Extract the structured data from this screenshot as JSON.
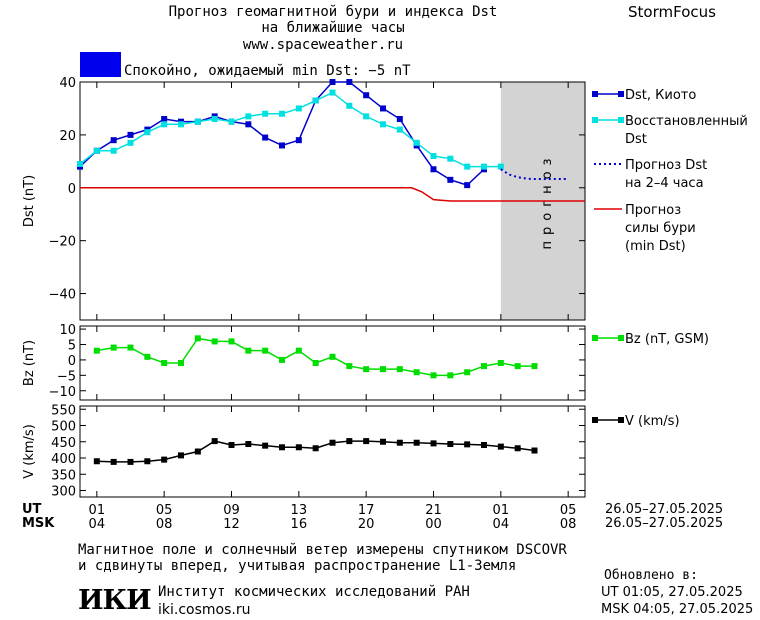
{
  "header": {
    "title_line1": "Прогноз геомагнитной бури и индекса Dst",
    "title_line2": "на ближайшие часы",
    "site": "www.spaceweather.ru",
    "brand": "StormFocus",
    "status_text": "Спокойно, ожидаемый min Dst: −5 nT",
    "status_color": "#0000ee"
  },
  "footer": {
    "note_line1": "Магнитное поле и солнечный ветер измерены спутником DSCOVR",
    "note_line2": "и сдвинуты вперед, учитывая распространение L1-Земля",
    "institute": "Институт космических исследований РАН",
    "institute_site": "iki.cosmos.ru",
    "logo_text": "ИКИ",
    "updated_label": "Обновлено в:",
    "updated_ut": "UT  01:05, 27.05.2025",
    "updated_msk": "MSK 04:05, 27.05.2025"
  },
  "time_axis": {
    "ut_label": "UT",
    "msk_label": "MSK",
    "ut_ticks": [
      "01",
      "05",
      "09",
      "13",
      "17",
      "21",
      "01",
      "05"
    ],
    "msk_ticks": [
      "04",
      "08",
      "12",
      "16",
      "20",
      "00",
      "04",
      "08"
    ],
    "ut_dates": "26.05–27.05.2025",
    "msk_dates": "26.05–27.05.2025",
    "tick_hours": [
      0,
      4,
      8,
      12,
      16,
      20,
      24,
      28
    ],
    "xlim_hours": [
      -1,
      29
    ]
  },
  "chart_data": [
    {
      "type": "line",
      "ylabel": "Dst (nT)",
      "ylim": [
        -50,
        40
      ],
      "yticks": [
        -40,
        -20,
        0,
        20,
        40
      ],
      "forecast_zone": {
        "label": "прогноз",
        "from_hour": 24,
        "to_hour": 29,
        "color": "#d3d3d3"
      },
      "legend": [
        {
          "label": "Dst, Киото",
          "color": "#0000cc"
        },
        {
          "label": "Восстановленный Dst",
          "label_line1": "Восстановленный",
          "label_line2": "Dst",
          "color": "#00e0e0"
        },
        {
          "label": "Прогноз Dst на 2–4 часа",
          "label_line1": "Прогноз Dst",
          "label_line2": "на 2–4 часа",
          "color": "#0000cc"
        },
        {
          "label": "Прогноз силы бури (min Dst)",
          "label_line1": "Прогноз",
          "label_line2": "силы бури",
          "label_line3": "(min Dst)",
          "color": "#dd0000"
        }
      ],
      "series": [
        {
          "name": "Dst, Киото",
          "color": "#0000cc",
          "x": [
            -1,
            0,
            1,
            2,
            3,
            4,
            5,
            6,
            7,
            8,
            9,
            10,
            11,
            12,
            13,
            14,
            15,
            16,
            17,
            18,
            19,
            20,
            21,
            22,
            23,
            24
          ],
          "y": [
            8,
            14,
            18,
            20,
            22,
            26,
            25,
            25,
            27,
            25,
            24,
            19,
            16,
            18,
            33,
            40,
            40,
            35,
            30,
            26,
            16,
            7,
            3,
            1,
            7,
            null
          ]
        },
        {
          "name": "Восстановленный Dst",
          "color": "#00e0e0",
          "x": [
            -1,
            0,
            1,
            2,
            3,
            4,
            5,
            6,
            7,
            8,
            9,
            10,
            11,
            12,
            13,
            14,
            15,
            16,
            17,
            18,
            19,
            20,
            21,
            22,
            23,
            24,
            25
          ],
          "y": [
            9,
            14,
            14,
            17,
            21,
            24,
            24,
            25,
            26,
            25,
            27,
            28,
            28,
            30,
            33,
            36,
            31,
            27,
            24,
            22,
            17,
            12,
            11,
            8,
            8,
            8,
            null
          ]
        },
        {
          "name": "Прогноз Dst на 2–4 часа",
          "color": "#0000cc",
          "dashed": true,
          "x": [
            24,
            24.5,
            25,
            25.5,
            26,
            26.5,
            27,
            27.5,
            28
          ],
          "y": [
            7,
            5,
            4,
            3.5,
            3.3,
            3.3,
            3.3,
            3.3,
            3.3
          ]
        },
        {
          "name": "Прогноз силы бури (min Dst)",
          "color": "#dd0000",
          "x": [
            -1,
            18.7,
            19.3,
            20,
            21,
            29
          ],
          "y": [
            0,
            0,
            -1.5,
            -4.5,
            -5,
            -5
          ]
        }
      ]
    },
    {
      "type": "line",
      "ylabel": "Bz (nT)",
      "ylim": [
        -13,
        11
      ],
      "yticks": [
        -10,
        -5,
        0,
        5,
        10
      ],
      "legend": [
        {
          "label": "Bz (nT, GSM)",
          "color": "#00dd00"
        }
      ],
      "series": [
        {
          "name": "Bz (nT, GSM)",
          "color": "#00dd00",
          "x": [
            0,
            1,
            2,
            3,
            4,
            5,
            6,
            7,
            8,
            9,
            10,
            11,
            12,
            13,
            14,
            15,
            16,
            17,
            18,
            19,
            20,
            21,
            22,
            23,
            24,
            25,
            26
          ],
          "y": [
            3,
            4,
            4,
            1,
            -1,
            -1,
            7,
            6,
            6,
            3,
            3,
            0,
            3,
            -1,
            1,
            -2,
            -3,
            -3,
            -3,
            -4,
            -5,
            -5,
            -4,
            -2,
            -1,
            -2,
            -2
          ]
        }
      ]
    },
    {
      "type": "line",
      "ylabel": "V (km/s)",
      "ylim": [
        280,
        560
      ],
      "yticks": [
        300,
        350,
        400,
        450,
        500,
        550
      ],
      "legend": [
        {
          "label": "V (km/s)",
          "color": "#000000"
        }
      ],
      "series": [
        {
          "name": "V (km/s)",
          "color": "#000000",
          "x": [
            0,
            1,
            2,
            3,
            4,
            5,
            6,
            7,
            8,
            9,
            10,
            11,
            12,
            13,
            14,
            15,
            16,
            17,
            18,
            19,
            20,
            21,
            22,
            23,
            24,
            25,
            26
          ],
          "y": [
            390,
            388,
            388,
            390,
            395,
            408,
            420,
            452,
            440,
            443,
            438,
            433,
            433,
            430,
            447,
            452,
            452,
            450,
            447,
            447,
            445,
            443,
            442,
            440,
            435,
            430,
            423
          ]
        }
      ]
    }
  ]
}
